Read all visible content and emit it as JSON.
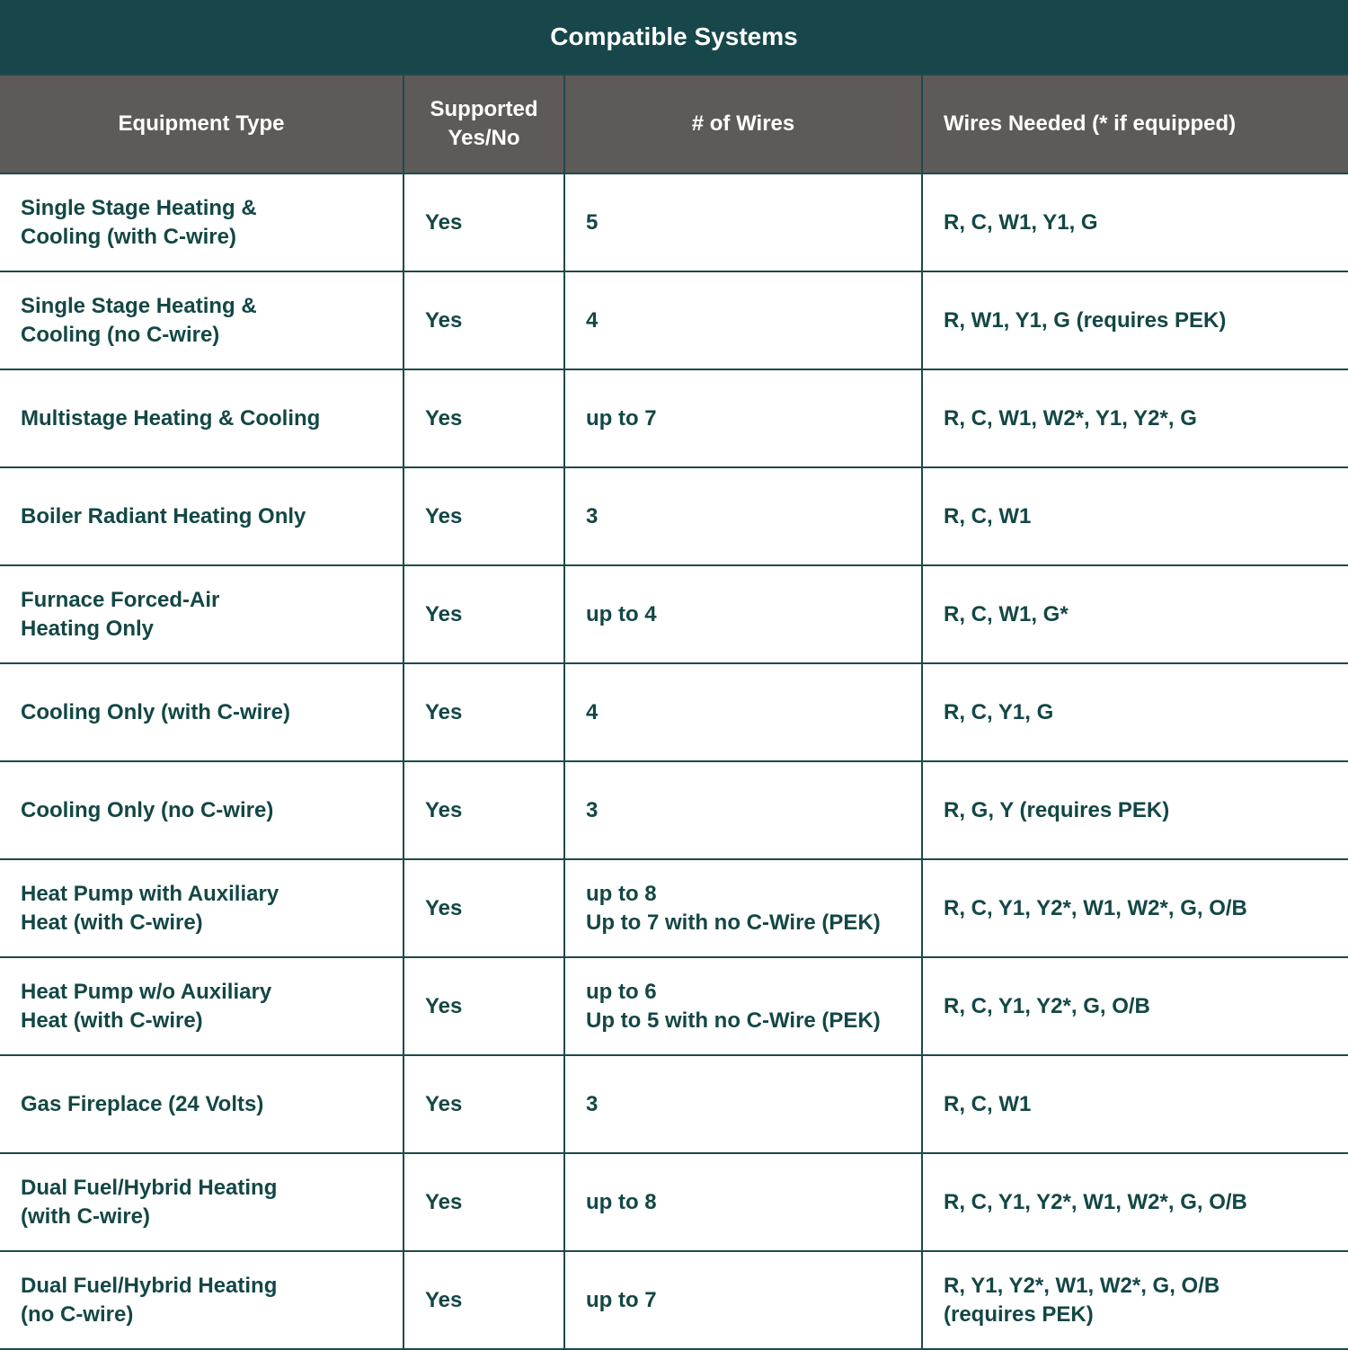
{
  "title": "Compatible Systems",
  "colors": {
    "title_bg": "#17474a",
    "header_bg": "#5f5a5a",
    "text": "#134745",
    "grid": "#1e4a4a"
  },
  "headers": [
    "Equipment Type",
    "Supported\nYes/No",
    "# of Wires",
    "Wires Needed (* if equipped)"
  ],
  "rows": [
    [
      "Single Stage Heating &\nCooling (with C-wire)",
      "Yes",
      "5",
      "R, C, W1, Y1, G"
    ],
    [
      "Single Stage Heating &\nCooling (no C-wire)",
      "Yes",
      "4",
      "R, W1, Y1, G (requires PEK)"
    ],
    [
      "Multistage Heating & Cooling",
      "Yes",
      "up to 7",
      "R, C, W1, W2*, Y1, Y2*, G"
    ],
    [
      "Boiler Radiant Heating Only",
      "Yes",
      "3",
      "R, C, W1"
    ],
    [
      "Furnace Forced-Air\n Heating Only",
      "Yes",
      "up to 4",
      "R, C, W1, G*"
    ],
    [
      "Cooling Only (with C-wire)",
      "Yes",
      "4",
      "R, C, Y1, G"
    ],
    [
      "Cooling Only (no C-wire)",
      "Yes",
      "3",
      "R, G, Y (requires PEK)"
    ],
    [
      "Heat Pump with Auxiliary\nHeat (with C-wire)",
      "Yes",
      "up to 8\nUp to 7 with no C-Wire (PEK)",
      "R, C, Y1, Y2*, W1, W2*, G, O/B"
    ],
    [
      "Heat Pump w/o Auxiliary\n Heat (with C-wire)",
      "Yes",
      "up to 6\nUp to 5 with no C-Wire (PEK)",
      "R, C, Y1, Y2*, G, O/B"
    ],
    [
      "Gas Fireplace (24 Volts)",
      "Yes",
      "3",
      "R, C, W1"
    ],
    [
      "Dual Fuel/Hybrid Heating\n(with C-wire)",
      "Yes",
      "up to 8",
      "R, C, Y1, Y2*, W1, W2*, G, O/B"
    ],
    [
      "Dual Fuel/Hybrid Heating\n(no C-wire)",
      "Yes",
      "up to 7",
      "R, Y1, Y2*, W1, W2*, G, O/B\n(requires PEK)"
    ]
  ]
}
